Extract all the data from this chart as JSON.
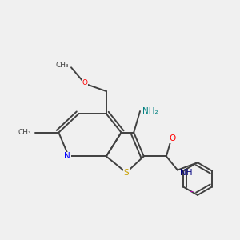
{
  "background_color": "#f0f0f0",
  "bond_color": "#404040",
  "atoms": {
    "S": {
      "color": "#c8a000",
      "label": "S"
    },
    "N_ring": {
      "color": "#0000ff",
      "label": "N"
    },
    "N_amino": {
      "color": "#008080",
      "label": "NH₂"
    },
    "N_amide": {
      "color": "#000080",
      "label": "NH"
    },
    "O_carbonyl": {
      "color": "#ff0000",
      "label": "O"
    },
    "O_ether": {
      "color": "#ff0000",
      "label": "O"
    },
    "F": {
      "color": "#cc00cc",
      "label": "F"
    },
    "CH3_methyl": {
      "color": "#404040",
      "label": "CH₃"
    },
    "CH3_methoxy": {
      "color": "#404040",
      "label": "CH₃"
    }
  }
}
